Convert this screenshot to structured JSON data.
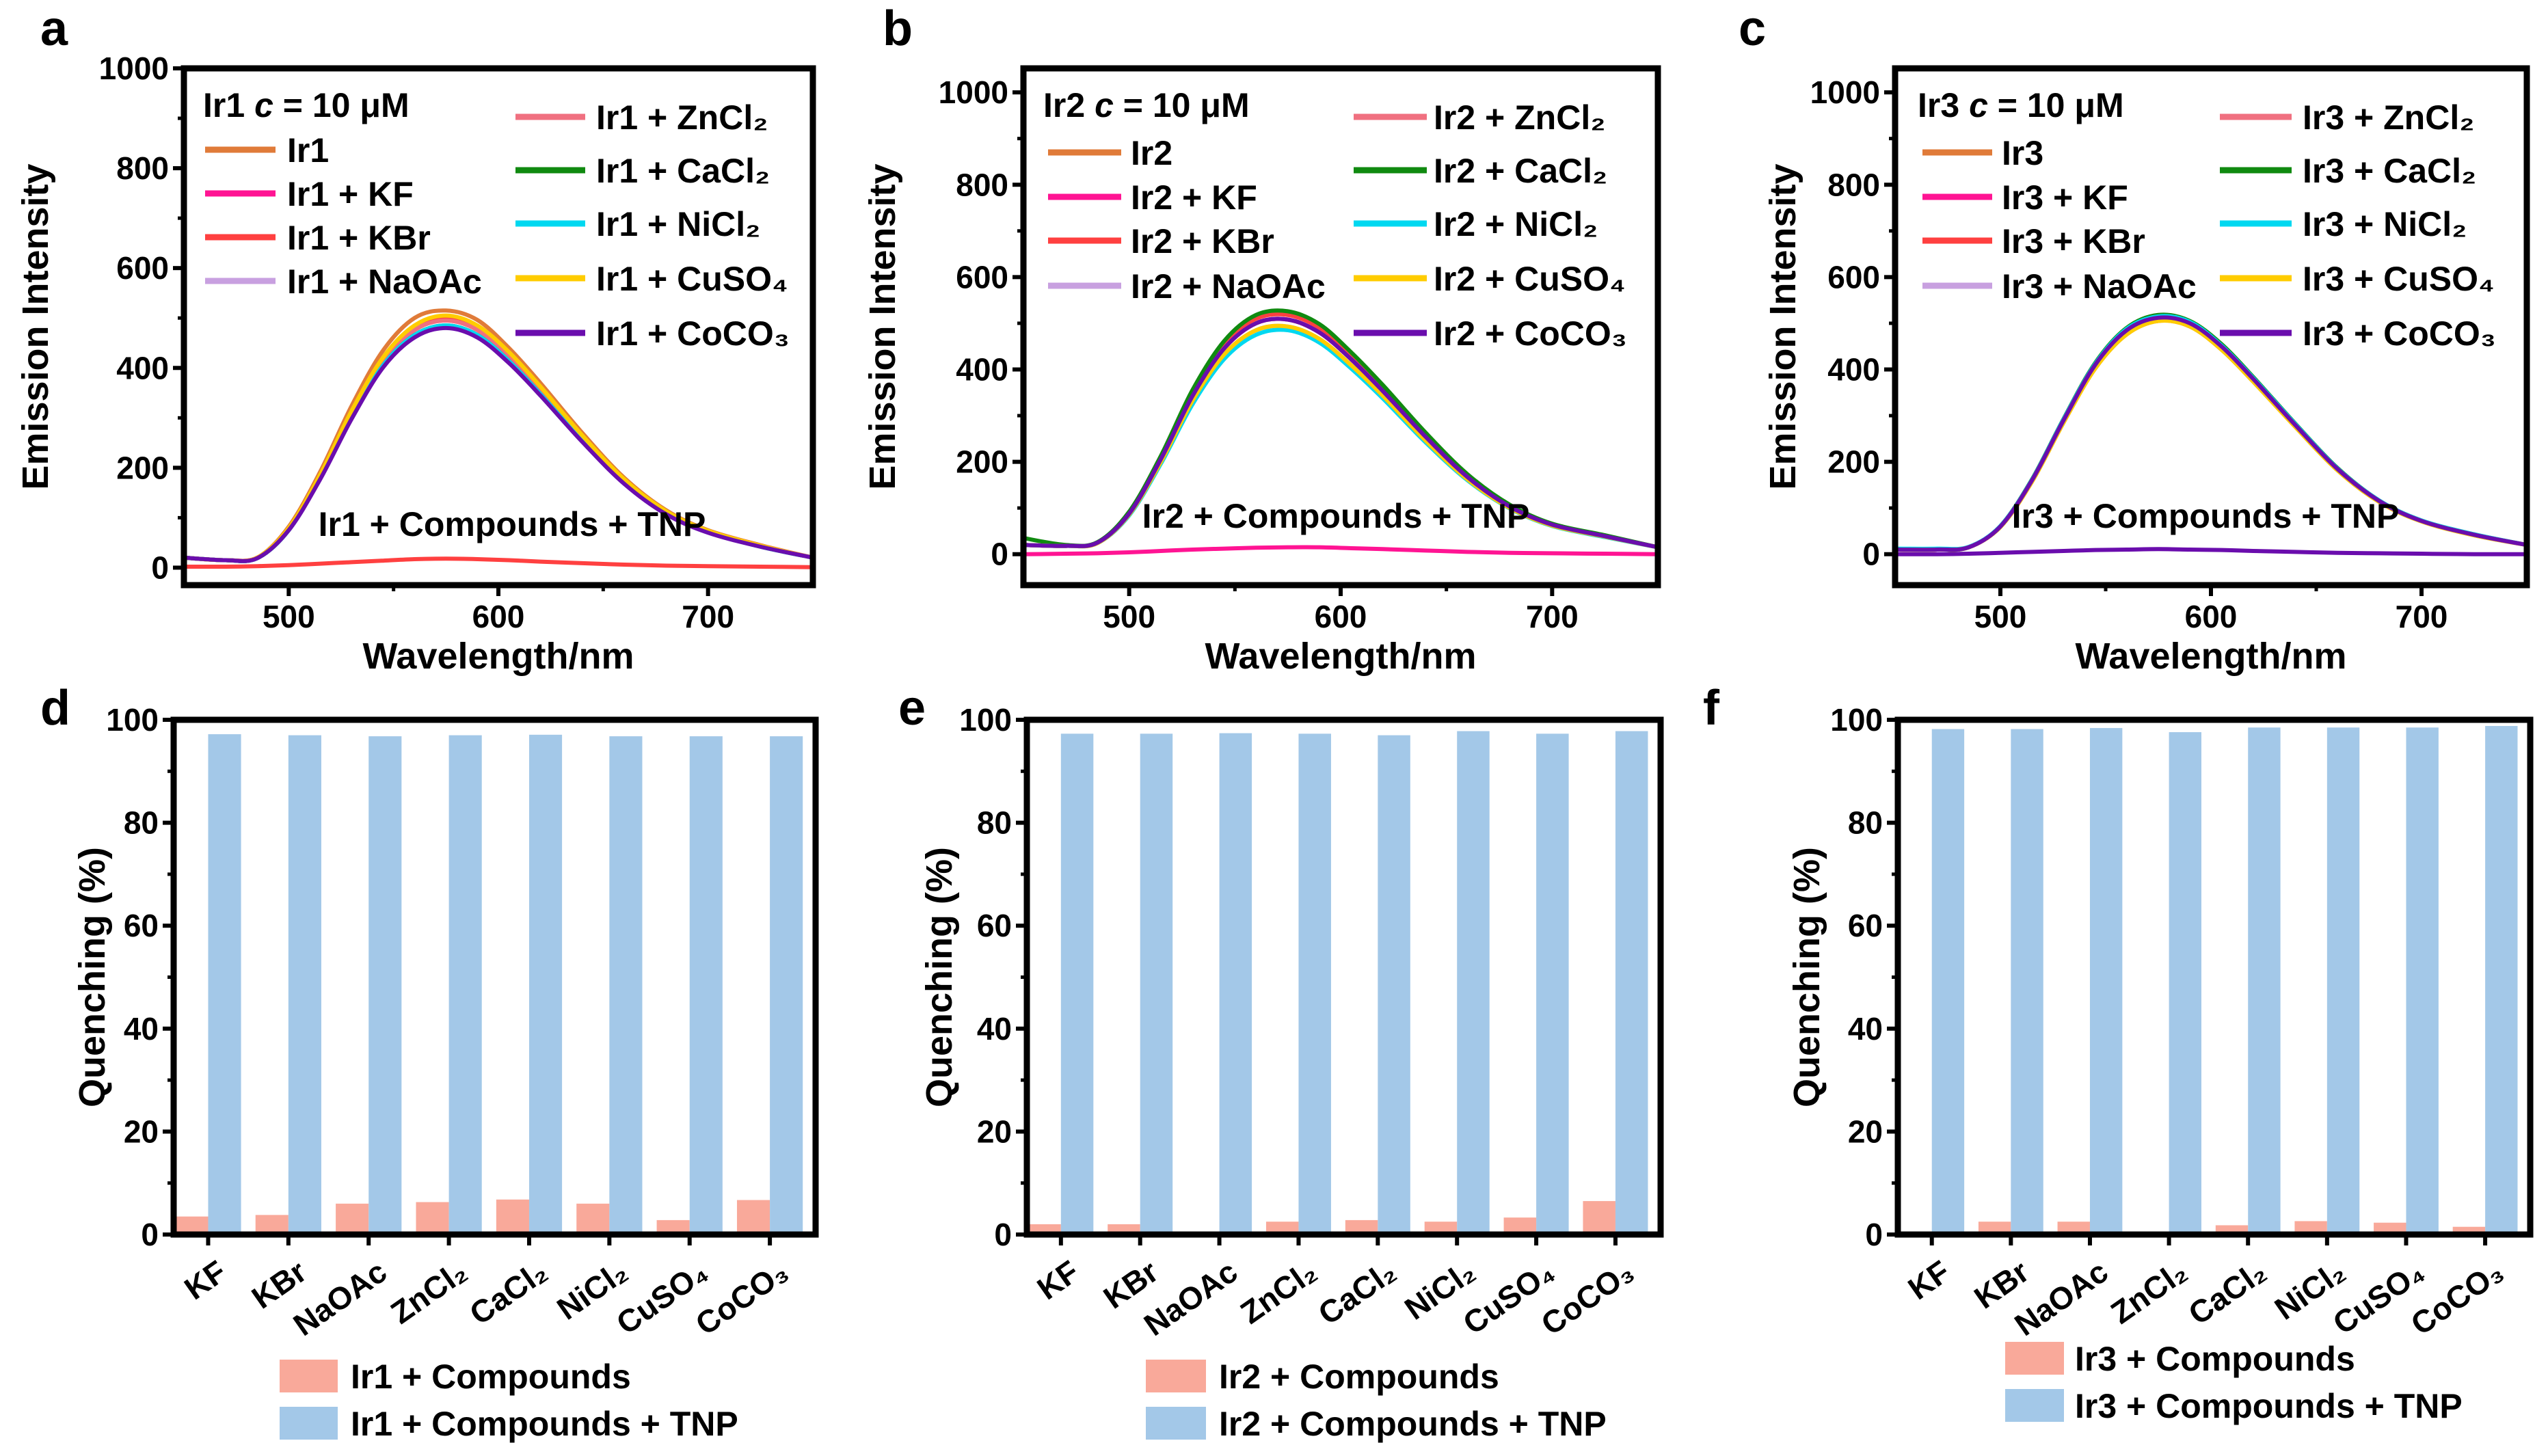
{
  "chart_data": [
    {
      "panel": "a",
      "type": "line",
      "legend_title": "Ir1  c = 10 μM",
      "xlabel": "Wavelength/nm",
      "ylabel": "Emission Intensity",
      "xlim": [
        450,
        750
      ],
      "ylim": [
        -35,
        1000
      ],
      "xticks": [
        500,
        600,
        700
      ],
      "yticks": [
        0,
        200,
        400,
        600,
        800,
        1000
      ],
      "annotation": "Ir1 + Compounds + TNP",
      "x": [
        450,
        470,
        485,
        500,
        515,
        530,
        545,
        560,
        575,
        590,
        605,
        620,
        640,
        660,
        680,
        700,
        725,
        750
      ],
      "series": [
        {
          "name": "Ir1",
          "color": "#e07b39",
          "y": [
            20,
            15,
            20,
            82,
            192,
            324,
            435,
            500,
            515,
            496,
            440,
            370,
            270,
            180,
            115,
            75,
            45,
            20
          ]
        },
        {
          "name": "Ir1 + KF",
          "color": "#ff1493",
          "y": [
            20,
            15,
            20,
            77,
            183,
            308,
            413,
            476,
            495,
            476,
            423,
            356,
            259,
            173,
            111,
            72,
            44,
            20
          ]
        },
        {
          "name": "Ir1 + KBr",
          "color": "#ff4040",
          "y": [
            20,
            15,
            20,
            78,
            185,
            311,
            418,
            481,
            500,
            481,
            427,
            359,
            262,
            175,
            112,
            73,
            44,
            20
          ]
        },
        {
          "name": "Ir1 + NaOAc",
          "color": "#c8a0e0",
          "y": [
            20,
            15,
            19,
            75,
            179,
            301,
            405,
            466,
            485,
            466,
            414,
            348,
            254,
            170,
            108,
            71,
            42,
            20
          ]
        },
        {
          "name": "Ir1 + ZnCl₂",
          "color": "#f07080",
          "y": [
            20,
            15,
            20,
            77,
            183,
            308,
            413,
            476,
            495,
            476,
            423,
            356,
            259,
            173,
            111,
            72,
            44,
            20
          ]
        },
        {
          "name": "Ir1 + CaCl₂",
          "color": "#108a10",
          "y": [
            20,
            15,
            19,
            75,
            179,
            301,
            405,
            466,
            485,
            466,
            414,
            348,
            254,
            170,
            108,
            71,
            42,
            20
          ]
        },
        {
          "name": "Ir1 + NiCl₂",
          "color": "#00d8f0",
          "y": [
            20,
            15,
            19,
            75,
            179,
            301,
            405,
            466,
            485,
            466,
            414,
            348,
            254,
            170,
            108,
            71,
            42,
            20
          ]
        },
        {
          "name": "Ir1 + CuSO₄",
          "color": "#ffcc00",
          "y": [
            20,
            15,
            20,
            79,
            186,
            314,
            421,
            485,
            505,
            485,
            432,
            363,
            265,
            177,
            113,
            74,
            44,
            20
          ]
        },
        {
          "name": "Ir1 + CoCO₃",
          "color": "#6a0dad",
          "y": [
            20,
            15,
            19,
            75,
            177,
            298,
            401,
            461,
            480,
            461,
            410,
            345,
            252,
            168,
            107,
            70,
            42,
            20
          ]
        },
        {
          "name": "",
          "color": "#ff4040",
          "y": [
            2,
            2,
            3,
            5,
            8,
            11,
            14,
            17,
            18,
            17,
            15,
            12,
            9,
            6,
            4,
            3,
            2,
            1
          ]
        }
      ]
    },
    {
      "panel": "b",
      "type": "line",
      "legend_title": "Ir2  c = 10 μM",
      "xlabel": "Wavelength/nm",
      "ylabel": "Emission Intensity",
      "xlim": [
        450,
        750
      ],
      "ylim": [
        -67,
        1052
      ],
      "xticks": [
        500,
        600,
        700
      ],
      "yticks": [
        0,
        200,
        400,
        600,
        800,
        1000
      ],
      "annotation": "Ir2 + Compounds + TNP",
      "x": [
        450,
        470,
        485,
        500,
        515,
        530,
        545,
        560,
        575,
        590,
        605,
        620,
        640,
        660,
        680,
        700,
        725,
        750
      ],
      "series": [
        {
          "name": "Ir2",
          "color": "#e07b39",
          "y": [
            20,
            18,
            25,
            88,
            206,
            343,
            446,
            500,
            508,
            480,
            422,
            353,
            255,
            167,
            103,
            64,
            39,
            15
          ]
        },
        {
          "name": "Ir2 + KF",
          "color": "#ff1493",
          "y": [
            20,
            18,
            25,
            88,
            206,
            343,
            446,
            500,
            508,
            480,
            422,
            353,
            255,
            167,
            103,
            64,
            39,
            15
          ]
        },
        {
          "name": "Ir2 + KBr",
          "color": "#ff4040",
          "y": [
            20,
            18,
            25,
            90,
            210,
            350,
            455,
            510,
            518,
            490,
            430,
            360,
            260,
            170,
            105,
            65,
            40,
            15
          ]
        },
        {
          "name": "Ir2 + NaOAc",
          "color": "#c8a0e0",
          "y": [
            20,
            18,
            24,
            86,
            200,
            333,
            433,
            485,
            493,
            466,
            409,
            343,
            247,
            162,
            100,
            62,
            38,
            15
          ]
        },
        {
          "name": "Ir2 + ZnCl₂",
          "color": "#f07080",
          "y": [
            20,
            18,
            25,
            88,
            206,
            343,
            446,
            500,
            508,
            480,
            422,
            353,
            255,
            167,
            103,
            64,
            39,
            15
          ]
        },
        {
          "name": "Ir2 + CaCl₂",
          "color": "#108a10",
          "y": [
            35,
            20,
            26,
            92,
            213,
            356,
            462,
            518,
            526,
            498,
            437,
            366,
            264,
            173,
            107,
            66,
            41,
            15
          ]
        },
        {
          "name": "Ir2 + NiCl₂",
          "color": "#00d8f0",
          "y": [
            20,
            18,
            24,
            84,
            196,
            325,
            423,
            475,
            485,
            458,
            402,
            337,
            243,
            160,
            99,
            61,
            37,
            15
          ]
        },
        {
          "name": "Ir2 + CuSO₄",
          "color": "#ffcc00",
          "y": [
            20,
            18,
            24,
            86,
            200,
            333,
            433,
            485,
            493,
            466,
            409,
            343,
            247,
            162,
            100,
            62,
            38,
            15
          ]
        },
        {
          "name": "Ir2 + CoCO₃",
          "color": "#6a0dad",
          "y": [
            20,
            18,
            25,
            88,
            206,
            343,
            446,
            500,
            508,
            480,
            422,
            353,
            255,
            167,
            103,
            64,
            39,
            15
          ]
        },
        {
          "name": "",
          "color": "#ff1493",
          "y": [
            0,
            1,
            2,
            4,
            7,
            10,
            12,
            14,
            15,
            15,
            13,
            11,
            8,
            5,
            3,
            2,
            1,
            0
          ]
        }
      ]
    },
    {
      "panel": "c",
      "type": "line",
      "legend_title": "Ir3  c = 10 μM",
      "xlabel": "Wavelength/nm",
      "ylabel": "Emission Intensity",
      "xlim": [
        450,
        750
      ],
      "ylim": [
        -67,
        1052
      ],
      "xticks": [
        500,
        600,
        700
      ],
      "yticks": [
        0,
        200,
        400,
        600,
        800,
        1000
      ],
      "annotation": "Ir3 + Compounds + TNP",
      "x": [
        450,
        470,
        485,
        500,
        515,
        530,
        545,
        560,
        575,
        590,
        605,
        620,
        640,
        660,
        680,
        700,
        725,
        750
      ],
      "series": [
        {
          "name": "Ir3",
          "color": "#e07b39",
          "y": [
            10,
            10,
            15,
            59,
            157,
            285,
            402,
            476,
            505,
            493,
            443,
            374,
            276,
            182,
            113,
            71,
            41,
            20
          ]
        },
        {
          "name": "Ir3 + KF",
          "color": "#ff1493",
          "y": [
            10,
            10,
            15,
            60,
            160,
            290,
            410,
            485,
            512,
            500,
            450,
            380,
            280,
            185,
            115,
            72,
            42,
            20
          ]
        },
        {
          "name": "Ir3 + KBr",
          "color": "#ff4040",
          "y": [
            10,
            10,
            15,
            60,
            160,
            290,
            410,
            485,
            512,
            500,
            450,
            380,
            280,
            185,
            115,
            72,
            42,
            20
          ]
        },
        {
          "name": "Ir3 + NaOAc",
          "color": "#c8a0e0",
          "y": [
            10,
            10,
            15,
            60,
            160,
            290,
            410,
            485,
            512,
            500,
            450,
            380,
            280,
            185,
            115,
            72,
            42,
            20
          ]
        },
        {
          "name": "Ir3 + ZnCl₂",
          "color": "#f07080",
          "y": [
            10,
            10,
            15,
            60,
            160,
            290,
            410,
            485,
            510,
            498,
            448,
            378,
            279,
            184,
            114,
            72,
            42,
            20
          ]
        },
        {
          "name": "Ir3 + CaCl₂",
          "color": "#108a10",
          "y": [
            10,
            10,
            15,
            61,
            162,
            293,
            414,
            490,
            518,
            505,
            455,
            384,
            283,
            187,
            116,
            73,
            43,
            20
          ]
        },
        {
          "name": "Ir3 + NiCl₂",
          "color": "#00d8f0",
          "y": [
            12,
            12,
            16,
            61,
            161,
            292,
            412,
            488,
            515,
            503,
            452,
            382,
            282,
            186,
            116,
            73,
            43,
            20
          ]
        },
        {
          "name": "Ir3 + CuSO₄",
          "color": "#ffcc00",
          "y": [
            10,
            10,
            15,
            59,
            157,
            285,
            402,
            476,
            505,
            493,
            443,
            374,
            276,
            182,
            113,
            71,
            41,
            20
          ]
        },
        {
          "name": "Ir3 + CoCO₃",
          "color": "#6a0dad",
          "y": [
            10,
            10,
            15,
            60,
            160,
            290,
            410,
            485,
            512,
            500,
            450,
            380,
            280,
            185,
            115,
            72,
            42,
            20
          ]
        },
        {
          "name": "",
          "color": "#6a0dad",
          "y": [
            0,
            0,
            1,
            3,
            5,
            7,
            9,
            10,
            11,
            10,
            9,
            7,
            5,
            3,
            2,
            1,
            0,
            0
          ]
        }
      ]
    },
    {
      "panel": "d",
      "type": "bar",
      "ylabel": "Quenching (%)",
      "ylim": [
        0,
        100
      ],
      "yticks": [
        0,
        20,
        40,
        60,
        80,
        100
      ],
      "categories": [
        "KF",
        "KBr",
        "NaOAc",
        "ZnCl₂",
        "CaCl₂",
        "NiCl₂",
        "CuSO₄",
        "CoCO₃"
      ],
      "legend": "bottom",
      "series": [
        {
          "name": "Ir1 + Compounds",
          "color": "#f9a99a",
          "values": [
            3.5,
            3.8,
            6.0,
            6.3,
            6.8,
            6.0,
            2.8,
            6.7
          ]
        },
        {
          "name": "Ir1 + Compounds + TNP",
          "color": "#a3c8e8",
          "values": [
            97.2,
            97.0,
            96.8,
            97.0,
            97.1,
            96.8,
            96.8,
            96.8
          ]
        }
      ]
    },
    {
      "panel": "e",
      "type": "bar",
      "ylabel": "Quenching (%)",
      "ylim": [
        0,
        100
      ],
      "yticks": [
        0,
        20,
        40,
        60,
        80,
        100
      ],
      "categories": [
        "KF",
        "KBr",
        "NaOAc",
        "ZnCl₂",
        "CaCl₂",
        "NiCl₂",
        "CuSO₄",
        "CoCO₃"
      ],
      "legend": "bottom",
      "series": [
        {
          "name": "Ir2 + Compounds",
          "color": "#f9a99a",
          "values": [
            2.0,
            2.0,
            0,
            2.5,
            2.8,
            2.5,
            3.3,
            6.5
          ]
        },
        {
          "name": "Ir2 + Compounds + TNP",
          "color": "#a3c8e8",
          "values": [
            97.3,
            97.3,
            97.4,
            97.3,
            97.0,
            97.8,
            97.3,
            97.8
          ]
        }
      ]
    },
    {
      "panel": "f",
      "type": "bar",
      "ylabel": "Quenching (%)",
      "ylim": [
        0,
        100
      ],
      "yticks": [
        0,
        20,
        40,
        60,
        80,
        100
      ],
      "categories": [
        "KF",
        "KBr",
        "NaOAc",
        "ZnCl₂",
        "CaCl₂",
        "NiCl₂",
        "CuSO₄",
        "CoCO₃"
      ],
      "legend": "bottom",
      "series": [
        {
          "name": "Ir3 + Compounds",
          "color": "#f9a99a",
          "values": [
            0.5,
            2.5,
            2.5,
            0,
            1.8,
            2.6,
            2.3,
            1.5
          ]
        },
        {
          "name": "Ir3 + Compounds + TNP",
          "color": "#a3c8e8",
          "values": [
            98.2,
            98.2,
            98.4,
            97.6,
            98.5,
            98.5,
            98.5,
            98.8
          ]
        }
      ]
    }
  ]
}
